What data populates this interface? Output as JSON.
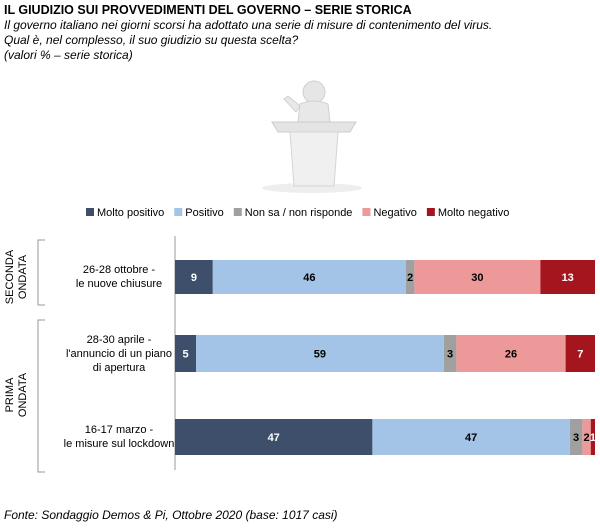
{
  "chart_data": {
    "type": "stacked-barh",
    "title": "IL GIUDIZIO SUI PROVVEDIMENTI DEL GOVERNO – SERIE STORICA",
    "subtitle": [
      "Il governo italiano nei giorni scorsi ha adottato una serie di misure di contenimento del virus.",
      "Qual è, nel complesso, il suo giudizio su questa scelta?"
    ],
    "note": "(valori %  – serie storica)",
    "source": "Fonte: Sondaggio Demos & Pi, Ottobre 2020 (base: 1017 casi)",
    "groups": [
      {
        "label": "SECONDA\nONDATA",
        "rows": [
          0
        ]
      },
      {
        "label": "PRIMA\nONDATA",
        "rows": [
          1,
          2
        ]
      }
    ],
    "categories": [
      "26-28 ottobre -\nle nuove chiusure",
      "28-30 aprile -\nl'annuncio di un piano\ndi apertura",
      "16-17 marzo -\nle misure sul lockdown"
    ],
    "xlim": [
      0,
      100
    ],
    "series": [
      {
        "name": "Molto positivo",
        "color": "#3d4f6b",
        "label_color": "#ffffff",
        "values": [
          9,
          5,
          47
        ]
      },
      {
        "name": "Positivo",
        "color": "#a3c4e6",
        "label_color": "#000000",
        "values": [
          46,
          59,
          47
        ]
      },
      {
        "name": "Non sa / non risponde",
        "color": "#a0a0a0",
        "label_color": "#000000",
        "values": [
          2,
          3,
          3
        ]
      },
      {
        "name": "Negativo",
        "color": "#ee9999",
        "label_color": "#000000",
        "values": [
          30,
          26,
          2
        ]
      },
      {
        "name": "Molto negativo",
        "color": "#a5151d",
        "label_color": "#ffffff",
        "values": [
          13,
          7,
          1
        ]
      }
    ]
  }
}
